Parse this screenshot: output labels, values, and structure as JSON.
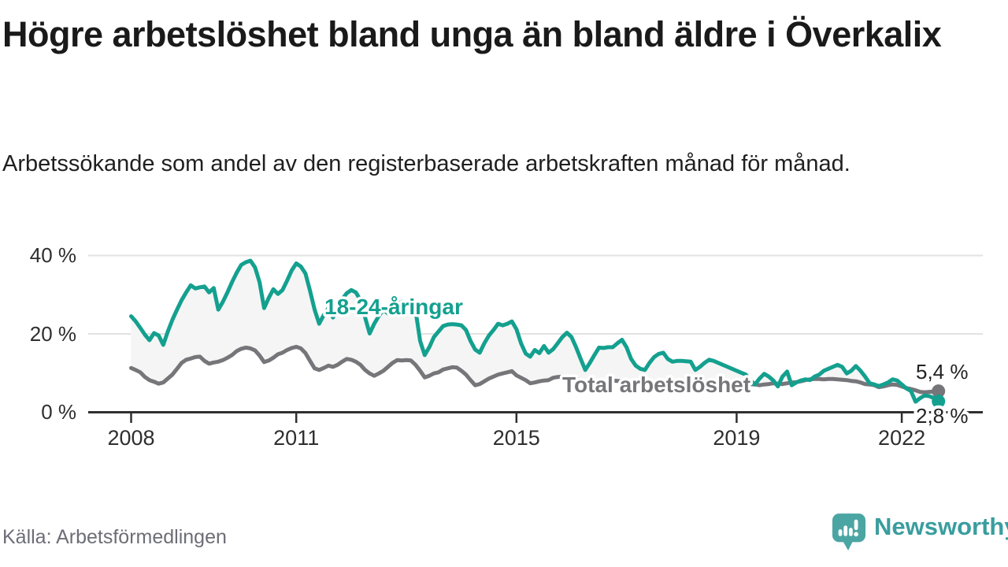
{
  "header": {
    "title": "Högre arbetslöshet bland unga än bland äldre i Överkalix",
    "subtitle": "Arbetssökande som andel av den registerbaserade arbetskraften månad för månad."
  },
  "footer": {
    "source": "Källa: Arbetsförmedlingen",
    "brand": "Newsworthy",
    "brand_color": "#3a9d9e",
    "logo_icon": "speech-bubble-bar-chart-icon",
    "logo_color": "#4ba5a3"
  },
  "chart_data": {
    "type": "line",
    "title": "",
    "xlabel": "",
    "ylabel": "",
    "x_start_year": 2008,
    "points_per_year": 12,
    "ylim": [
      0,
      42
    ],
    "grid": "horizontal",
    "fill_between_color": "#f5f5f5",
    "axis_color": "#2f2f2f",
    "gridline_color": "#e2e2e2",
    "yticks": [
      {
        "value": 40,
        "label": "40 %"
      },
      {
        "value": 20,
        "label": "20 %"
      },
      {
        "value": 0,
        "label": "0 %"
      }
    ],
    "xticks": [
      {
        "year": 2008,
        "label": "2008"
      },
      {
        "year": 2011,
        "label": "2011"
      },
      {
        "year": 2015,
        "label": "2015"
      },
      {
        "year": 2019,
        "label": "2019"
      },
      {
        "year": 2022,
        "label": "2022"
      }
    ],
    "series": [
      {
        "name": "18-24-åringar",
        "color": "#14a08f",
        "values": [
          24.5,
          23.2,
          21.5,
          19.8,
          18.4,
          20.2,
          19.6,
          17.2,
          20.6,
          23.6,
          26.2,
          28.6,
          30.6,
          32.4,
          31.6,
          31.9,
          32.1,
          30.6,
          31.7,
          26.2,
          28.2,
          30.6,
          33.2,
          35.6,
          37.6,
          38.3,
          38.7,
          37.0,
          33.2,
          26.6,
          29.2,
          31.4,
          30.2,
          31.2,
          33.6,
          36.2,
          38.0,
          37.2,
          35.4,
          31.0,
          26.2,
          22.6,
          24.8,
          26.6,
          24.2,
          26.2,
          28.8,
          30.4,
          31.2,
          30.6,
          28.6,
          24.2,
          20.1,
          22.6,
          24.6,
          26.2,
          25.2,
          26.6,
          27.6,
          28.2,
          28.0,
          26.6,
          26.0,
          18.2,
          14.6,
          16.6,
          19.2,
          20.6,
          22.0,
          22.4,
          22.5,
          22.4,
          22.2,
          21.0,
          18.2,
          16.0,
          15.2,
          17.6,
          19.6,
          21.0,
          22.6,
          22.2,
          22.6,
          23.2,
          21.2,
          17.6,
          15.0,
          14.2,
          15.9,
          15.1,
          16.9,
          15.2,
          16.1,
          17.6,
          19.2,
          20.3,
          19.2,
          16.6,
          13.6,
          10.8,
          12.6,
          14.6,
          16.5,
          16.4,
          16.6,
          16.6,
          17.6,
          18.5,
          16.6,
          13.6,
          11.9,
          11.1,
          10.8,
          12.6,
          14.1,
          14.9,
          15.2,
          13.6,
          12.9,
          13.1,
          13.1,
          13.0,
          12.9,
          10.8,
          11.6,
          12.6,
          13.4,
          13.1,
          12.6,
          12.1,
          11.6,
          11.1,
          10.6,
          10.1,
          9.6,
          8.1,
          7.1,
          8.6,
          9.8,
          9.1,
          8.1,
          6.6,
          9.1,
          10.4,
          6.9,
          7.6,
          8.1,
          8.4,
          8.2,
          9.1,
          9.6,
          10.6,
          11.1,
          11.6,
          12.1,
          11.6,
          9.9,
          10.6,
          11.8,
          10.6,
          9.1,
          7.4,
          7.1,
          6.7,
          7.1,
          7.6,
          8.4,
          8.1,
          7.1,
          6.1,
          5.4,
          2.7,
          3.6,
          4.3,
          4.1,
          3.6,
          2.8
        ]
      },
      {
        "name": "Total arbetslöshet",
        "color": "#76767a",
        "values": [
          11.3,
          10.8,
          10.2,
          9.0,
          8.2,
          7.8,
          7.3,
          7.6,
          8.6,
          9.6,
          11.1,
          12.6,
          13.4,
          13.7,
          14.1,
          14.2,
          13.1,
          12.4,
          12.7,
          12.9,
          13.3,
          13.9,
          14.6,
          15.6,
          16.2,
          16.5,
          16.3,
          15.8,
          14.5,
          12.8,
          13.2,
          13.9,
          14.8,
          15.2,
          15.9,
          16.4,
          16.7,
          16.3,
          15.1,
          13.1,
          11.2,
          10.8,
          11.3,
          11.9,
          11.6,
          12.1,
          12.9,
          13.6,
          13.4,
          12.9,
          12.1,
          10.8,
          9.9,
          9.3,
          9.9,
          10.6,
          11.6,
          12.6,
          13.3,
          13.2,
          13.3,
          13.2,
          12.1,
          10.6,
          8.9,
          9.3,
          9.9,
          10.2,
          10.9,
          11.2,
          11.5,
          11.4,
          10.6,
          9.6,
          8.2,
          6.9,
          7.2,
          7.9,
          8.6,
          9.1,
          9.6,
          9.9,
          10.2,
          10.5,
          9.4,
          8.8,
          8.2,
          7.4,
          7.6,
          7.9,
          8.1,
          8.2,
          8.8,
          9.0,
          9.1,
          9.0,
          8.8,
          8.5,
          8.1,
          7.6,
          7.2,
          7.1,
          7.2,
          7.6,
          7.9,
          8.1,
          8.0,
          7.9,
          7.6,
          7.2,
          7.1,
          6.9,
          6.6,
          6.3,
          6.6,
          6.9,
          7.1,
          7.0,
          6.9,
          6.6,
          6.6,
          6.4,
          6.3,
          6.1,
          5.9,
          6.1,
          6.2,
          6.4,
          6.6,
          6.5,
          6.4,
          6.3,
          6.6,
          6.9,
          7.1,
          7.2,
          7.1,
          6.9,
          7.1,
          7.2,
          7.4,
          7.3,
          7.2,
          7.4,
          7.6,
          7.7,
          7.9,
          8.2,
          8.4,
          8.5,
          8.5,
          8.4,
          8.5,
          8.5,
          8.4,
          8.3,
          8.2,
          8.0,
          7.9,
          7.6,
          7.2,
          7.1,
          6.9,
          6.4,
          6.6,
          6.9,
          7.1,
          7.0,
          6.6,
          6.2,
          5.9,
          5.6,
          5.2,
          5.1,
          5.2,
          5.3,
          5.4
        ]
      }
    ],
    "end_labels": [
      {
        "series": "Total arbetslöshet",
        "text": "5,4 %"
      },
      {
        "series": "18-24-åringar",
        "text": "2,8 %"
      }
    ]
  }
}
